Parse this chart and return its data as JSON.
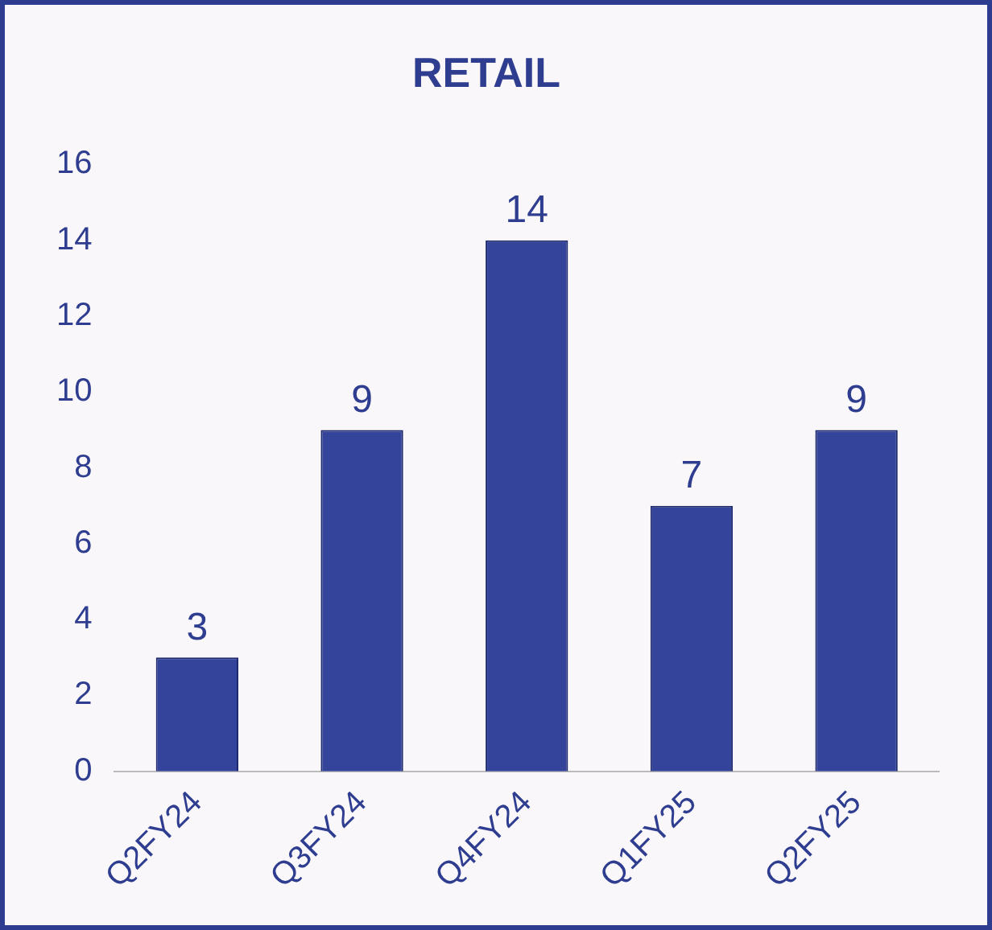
{
  "chart_data": {
    "type": "bar",
    "title": "RETAIL",
    "categories": [
      "Q2FY24",
      "Q3FY24",
      "Q4FY24",
      "Q1FY25",
      "Q2FY25"
    ],
    "values": [
      3,
      9,
      14,
      7,
      9
    ],
    "color": "#34449a",
    "ylim": [
      0,
      16
    ],
    "yticks": [
      0,
      2,
      4,
      6,
      8,
      10,
      12,
      14,
      16
    ],
    "grid": false,
    "legend": false,
    "data_labels": true
  }
}
